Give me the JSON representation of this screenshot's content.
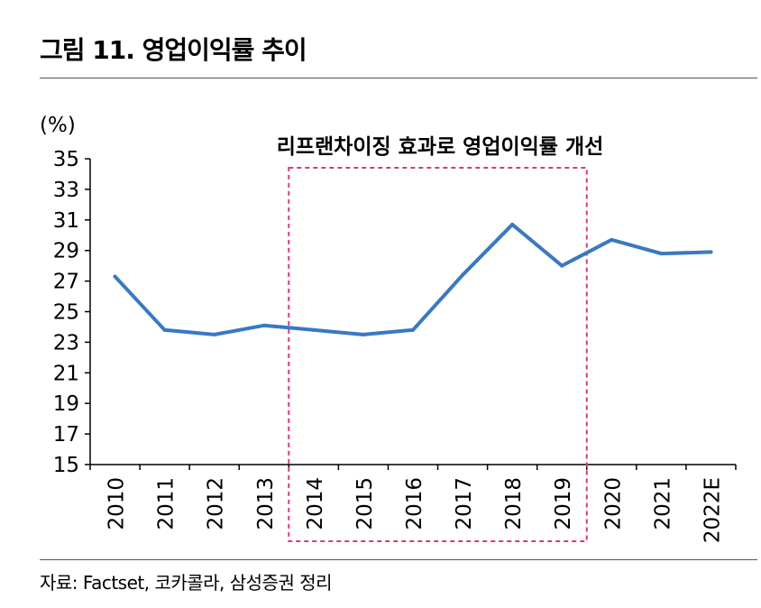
{
  "figure": {
    "title": "그림 11.  영업이익률 추이",
    "source": "자료: Factset, 코카콜라, 삼성증권 정리"
  },
  "chart_data": {
    "type": "line",
    "title": "영업이익률 추이",
    "ylabel": "(%)",
    "xlabel": "",
    "ylim": [
      15,
      35
    ],
    "yticks": [
      15,
      17,
      19,
      21,
      23,
      25,
      27,
      29,
      31,
      33,
      35
    ],
    "categories": [
      "2010",
      "2011",
      "2012",
      "2013",
      "2014",
      "2015",
      "2016",
      "2017",
      "2018",
      "2019",
      "2020",
      "2021",
      "2022E"
    ],
    "series": [
      {
        "name": "영업이익률",
        "color": "#3a78c3",
        "values": [
          27.3,
          23.8,
          23.5,
          24.1,
          23.8,
          23.5,
          23.8,
          27.4,
          30.7,
          28.0,
          29.7,
          28.8,
          28.9
        ]
      }
    ],
    "annotation": {
      "text": "리프랜차이징 효과로 영업이익률 개선",
      "range": [
        "2014",
        "2019"
      ],
      "color": "#d63a85"
    },
    "grid": false
  }
}
